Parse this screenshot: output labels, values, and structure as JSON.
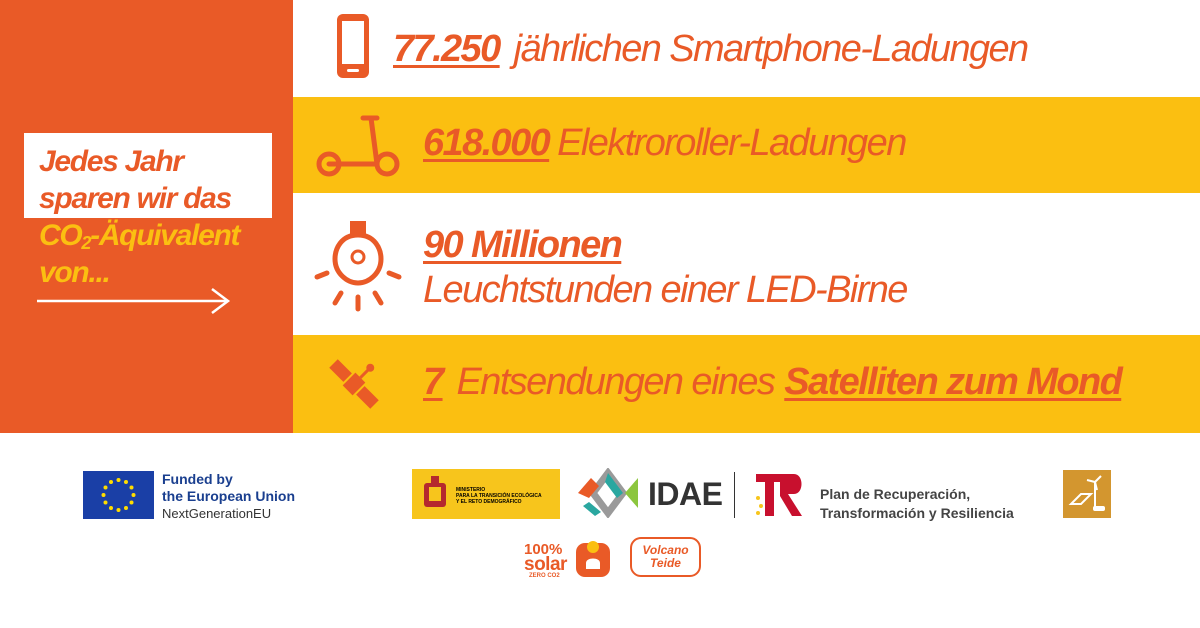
{
  "intro": {
    "line1": "Jedes Jahr",
    "line2": "sparen wir das",
    "co2_main": "CO",
    "co2_sub": "2",
    "co2_rest": "-Äquivalent",
    "line4": "von..."
  },
  "stats": [
    {
      "number": "77.250",
      "text": "jährlichen Smartphone-Ladungen",
      "icon": "smartphone-icon"
    },
    {
      "number": "618.000",
      "text": "Elektroroller-Ladungen",
      "icon": "scooter-icon"
    },
    {
      "number": "90 Millionen",
      "text": "Leuchtstunden einer LED-Birne",
      "icon": "lightbulb-icon"
    },
    {
      "number": "7",
      "text": "Entsendungen eines",
      "highlight": "Satelliten zum Mond",
      "icon": "satellite-icon"
    }
  ],
  "footer": {
    "eu_line1": "Funded by",
    "eu_line2": "the European Union",
    "eu_line3": "NextGenerationEU",
    "ministry_line1": "MINISTERIO",
    "ministry_line2": "PARA LA TRANSICIÓN ECOLÓGICA",
    "ministry_line3": "Y EL RETO DEMOGRÁFICO",
    "idae": "IDAE",
    "prtr_line1": "Plan de Recuperación,",
    "prtr_line2": "Transformación y Resiliencia",
    "solar_line1": "100%",
    "solar_line2": "solar",
    "solar_line3": "ZERO CO2",
    "volcano_line1": "Volcano",
    "volcano_line2": "Teide"
  },
  "colors": {
    "orange": "#e95a27",
    "yellow": "#fbbf11",
    "white": "#ffffff",
    "eu_blue": "#1a3fa6"
  }
}
